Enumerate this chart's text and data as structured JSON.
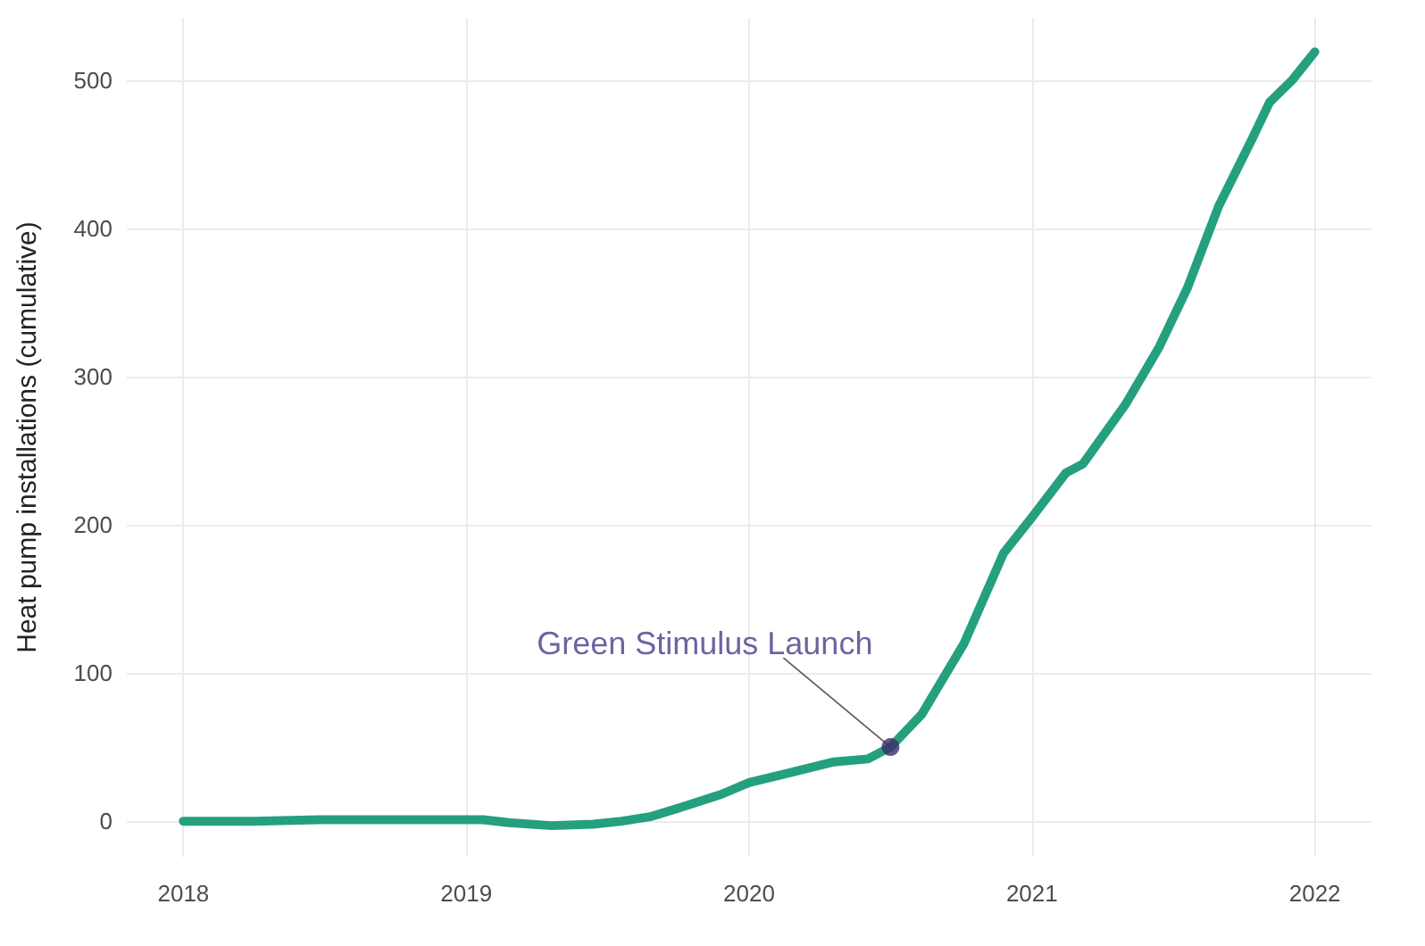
{
  "chart_data": {
    "type": "line",
    "ylabel": "Heat pump installations (cumulative)",
    "x": [
      2018.0,
      2018.25,
      2018.48,
      2018.75,
      2019.06,
      2019.15,
      2019.3,
      2019.45,
      2019.55,
      2019.65,
      2019.77,
      2019.9,
      2020.0,
      2020.15,
      2020.3,
      2020.42,
      2020.5,
      2020.61,
      2020.76,
      2020.9,
      2021.0,
      2021.12,
      2021.18,
      2021.33,
      2021.45,
      2021.55,
      2021.66,
      2021.78,
      2021.84,
      2021.92,
      2022.0
    ],
    "series": [
      {
        "color": "#25a07e",
        "values": [
          0,
          0,
          1,
          1,
          1,
          -1,
          -3,
          -2,
          0,
          3,
          10,
          18,
          26,
          33,
          40,
          42,
          50,
          72,
          120,
          181,
          205,
          235,
          241,
          281,
          320,
          360,
          415,
          461,
          485,
          500,
          519
        ]
      }
    ],
    "xlim": [
      2017.8,
      2022.2
    ],
    "xticks": [
      2018,
      2019,
      2020,
      2021,
      2022
    ],
    "ylim": [
      -24,
      542
    ],
    "yticks": [
      0,
      100,
      200,
      300,
      400,
      500
    ],
    "annotations": [
      {
        "text": "Green Stimulus Launch",
        "x": 2020.5,
        "y": 50
      }
    ],
    "grid": true,
    "marker": "none",
    "line_style": "solid"
  }
}
